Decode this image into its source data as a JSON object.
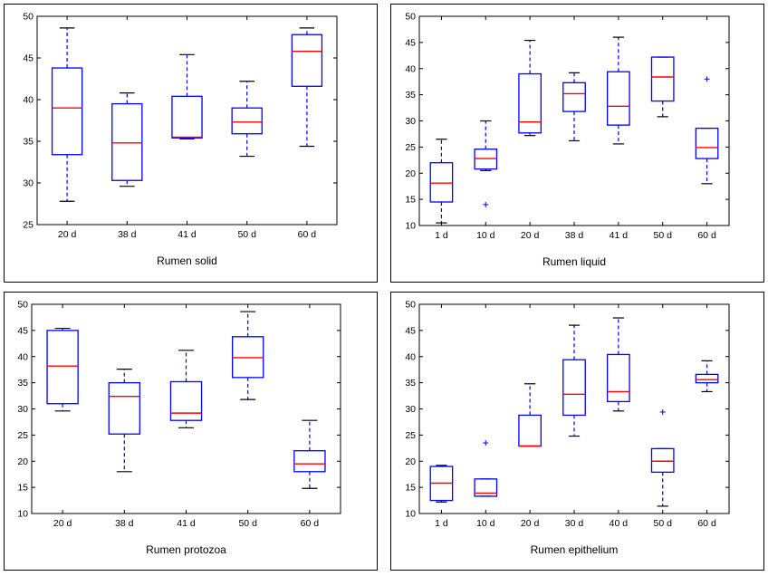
{
  "colors": {
    "box": "#0000ff",
    "median": "#ff0000",
    "whisker": "#0000ff",
    "cap": "#000000",
    "outlier": "#0000ff",
    "axis": "#000000"
  },
  "chart_data": [
    {
      "type": "boxplot",
      "title": "Rumen solid",
      "ylim": [
        25,
        50
      ],
      "yticks": [
        25,
        30,
        35,
        40,
        45,
        50
      ],
      "categories": [
        "20 d",
        "38 d",
        "41 d",
        "50 d",
        "60 d"
      ],
      "boxes": [
        {
          "min": 27.8,
          "q1": 33.4,
          "median": 39.0,
          "q3": 43.8,
          "max": 48.6,
          "outliers": []
        },
        {
          "min": 29.6,
          "q1": 30.3,
          "median": 34.8,
          "q3": 39.5,
          "max": 40.8,
          "outliers": []
        },
        {
          "min": 35.3,
          "q1": 35.4,
          "median": 35.5,
          "q3": 40.4,
          "max": 45.4,
          "outliers": []
        },
        {
          "min": 33.2,
          "q1": 35.9,
          "median": 37.3,
          "q3": 39.0,
          "max": 42.2,
          "outliers": []
        },
        {
          "min": 34.4,
          "q1": 41.6,
          "median": 45.8,
          "q3": 47.8,
          "max": 48.6,
          "outliers": []
        }
      ]
    },
    {
      "type": "boxplot",
      "title": "Rumen liquid",
      "ylim": [
        10,
        50
      ],
      "yticks": [
        10,
        15,
        20,
        25,
        30,
        35,
        40,
        45,
        50
      ],
      "categories": [
        "1 d",
        "10 d",
        "20 d",
        "38 d",
        "41 d",
        "50 d",
        "60 d"
      ],
      "boxes": [
        {
          "min": 10.5,
          "q1": 14.5,
          "median": 18.1,
          "q3": 22.0,
          "max": 26.5,
          "outliers": []
        },
        {
          "min": 20.5,
          "q1": 20.8,
          "median": 22.8,
          "q3": 24.6,
          "max": 30.0,
          "outliers": [
            14.0
          ]
        },
        {
          "min": 27.2,
          "q1": 27.7,
          "median": 29.8,
          "q3": 39.0,
          "max": 45.4,
          "outliers": []
        },
        {
          "min": 26.2,
          "q1": 31.8,
          "median": 35.2,
          "q3": 37.3,
          "max": 39.2,
          "outliers": []
        },
        {
          "min": 25.6,
          "q1": 29.2,
          "median": 32.8,
          "q3": 39.4,
          "max": 46.0,
          "outliers": []
        },
        {
          "min": 30.8,
          "q1": 33.8,
          "median": 38.4,
          "q3": 42.2,
          "max": 42.2,
          "outliers": []
        },
        {
          "min": 18.0,
          "q1": 22.8,
          "median": 24.9,
          "q3": 28.6,
          "max": 28.6,
          "outliers": [
            38.0
          ]
        }
      ]
    },
    {
      "type": "boxplot",
      "title": "Rumen protozoa",
      "ylim": [
        10,
        50
      ],
      "yticks": [
        10,
        15,
        20,
        25,
        30,
        35,
        40,
        45,
        50
      ],
      "categories": [
        "20 d",
        "38 d",
        "41 d",
        "50 d",
        "60 d"
      ],
      "boxes": [
        {
          "min": 29.6,
          "q1": 31.0,
          "median": 38.2,
          "q3": 45.0,
          "max": 45.4,
          "outliers": []
        },
        {
          "min": 18.0,
          "q1": 25.2,
          "median": 32.4,
          "q3": 35.0,
          "max": 37.6,
          "outliers": []
        },
        {
          "min": 26.4,
          "q1": 27.8,
          "median": 29.2,
          "q3": 35.2,
          "max": 41.2,
          "outliers": []
        },
        {
          "min": 31.8,
          "q1": 36.0,
          "median": 39.8,
          "q3": 43.8,
          "max": 48.6,
          "outliers": []
        },
        {
          "min": 14.8,
          "q1": 18.0,
          "median": 19.5,
          "q3": 22.0,
          "max": 27.8,
          "outliers": []
        }
      ]
    },
    {
      "type": "boxplot",
      "title": "Rumen epithelium",
      "ylim": [
        10,
        50
      ],
      "yticks": [
        10,
        15,
        20,
        25,
        30,
        35,
        40,
        45,
        50
      ],
      "categories": [
        "1 d",
        "10 d",
        "20 d",
        "30 d",
        "40 d",
        "50 d",
        "60 d"
      ],
      "boxes": [
        {
          "min": 12.2,
          "q1": 12.5,
          "median": 15.8,
          "q3": 19.0,
          "max": 19.2,
          "outliers": []
        },
        {
          "min": 13.3,
          "q1": 13.3,
          "median": 13.9,
          "q3": 16.6,
          "max": 16.6,
          "outliers": [
            23.5
          ]
        },
        {
          "min": 22.9,
          "q1": 22.9,
          "median": 22.9,
          "q3": 28.8,
          "max": 34.8,
          "outliers": []
        },
        {
          "min": 24.8,
          "q1": 28.8,
          "median": 32.8,
          "q3": 39.4,
          "max": 46.0,
          "outliers": []
        },
        {
          "min": 29.6,
          "q1": 31.4,
          "median": 33.3,
          "q3": 40.4,
          "max": 47.4,
          "outliers": []
        },
        {
          "min": 11.4,
          "q1": 17.9,
          "median": 20.0,
          "q3": 22.4,
          "max": 22.4,
          "outliers": [
            29.4
          ]
        },
        {
          "min": 33.3,
          "q1": 35.0,
          "median": 35.6,
          "q3": 36.6,
          "max": 39.2,
          "outliers": []
        }
      ]
    }
  ]
}
